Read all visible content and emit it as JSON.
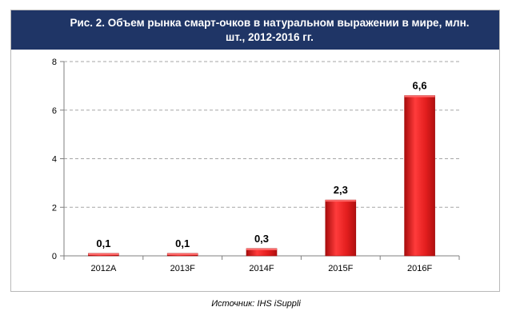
{
  "title": "Рис. 2. Объем рынка смарт-очков в натуральном выражении в мире, млн. шт., 2012-2016 гг.",
  "source": "Источник: IHS iSuppli",
  "colors": {
    "title_background": "#1f3566",
    "bar": "#e31e1e",
    "gridline": "#a6a6a6"
  },
  "chart_data": {
    "type": "bar",
    "categories": [
      "2012A",
      "2013F",
      "2014F",
      "2015F",
      "2016F"
    ],
    "values": [
      0.1,
      0.1,
      0.3,
      2.3,
      6.6
    ],
    "data_labels": [
      "0,1",
      "0,1",
      "0,3",
      "2,3",
      "6,6"
    ],
    "y_ticks": [
      0,
      2,
      4,
      6,
      8
    ],
    "ylim": [
      0,
      8
    ],
    "grid": true,
    "grid_style": "dashed horizontal",
    "legend": "none"
  }
}
